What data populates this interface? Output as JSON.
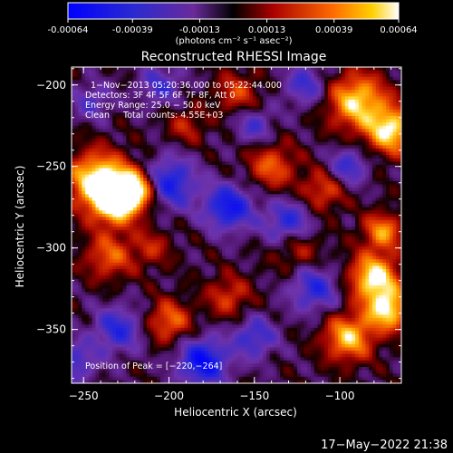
{
  "colorbar": {
    "ticks": [
      "-0.00064",
      "-0.00039",
      "-0.00013",
      "0.00013",
      "0.00039",
      "0.00064"
    ],
    "unit_label": "(photons cm⁻² s⁻¹ asec⁻²)",
    "min": -0.00064,
    "max": 0.00064
  },
  "chart_data": {
    "type": "heatmap",
    "title": "Reconstructed RHESSI Image",
    "xlabel": "Heliocentric X (arcsec)",
    "ylabel": "Heliocentric Y (arcsec)",
    "xlim": [
      -257,
      -64
    ],
    "ylim": [
      -383,
      -189
    ],
    "x_ticks": [
      -250,
      -200,
      -150,
      -100
    ],
    "y_ticks": [
      -200,
      -250,
      -300,
      -350
    ],
    "x_tick_labels": [
      "−250",
      "−200",
      "−150",
      "−100"
    ],
    "y_tick_labels": [
      "−200",
      "−250",
      "−300",
      "−350"
    ],
    "annotations": [
      "1−Nov−2013 05:20:36.000 to 05:22:44.000",
      "Detectors: 3F 4F 5F 6F 7F 8F, Att 0",
      "Energy Range: 25.0 − 50.0 keV",
      "Clean     Total counts: 4.55E+03"
    ],
    "peak_label": "Position of Peak = [−220,−264]",
    "peak": [
      -220,
      -264
    ],
    "hot_spots": [
      {
        "x": -242,
        "y": -258,
        "amp": 1.0,
        "r": 12
      },
      {
        "x": -232,
        "y": -272,
        "amp": 0.95,
        "r": 10
      },
      {
        "x": -220,
        "y": -264,
        "amp": 1.0,
        "r": 9
      },
      {
        "x": -90,
        "y": -210,
        "amp": 0.9,
        "r": 12
      },
      {
        "x": -70,
        "y": -228,
        "amp": 0.95,
        "r": 10
      },
      {
        "x": -80,
        "y": -318,
        "amp": 1.0,
        "r": 10
      },
      {
        "x": -72,
        "y": -338,
        "amp": 0.95,
        "r": 9
      },
      {
        "x": -95,
        "y": -355,
        "amp": 0.85,
        "r": 10
      },
      {
        "x": -75,
        "y": -290,
        "amp": 0.7,
        "r": 8
      },
      {
        "x": -235,
        "y": -305,
        "amp": 0.55,
        "r": 10
      },
      {
        "x": -200,
        "y": -345,
        "amp": 0.6,
        "r": 9
      },
      {
        "x": -165,
        "y": -330,
        "amp": 0.45,
        "r": 9
      },
      {
        "x": -140,
        "y": -250,
        "amp": 0.55,
        "r": 10
      },
      {
        "x": -160,
        "y": -205,
        "amp": 0.45,
        "r": 9
      },
      {
        "x": -110,
        "y": -265,
        "amp": 0.5,
        "r": 9
      },
      {
        "x": -190,
        "y": -225,
        "amp": 0.35,
        "r": 8
      },
      {
        "x": -125,
        "y": -300,
        "amp": 0.4,
        "r": 10
      },
      {
        "x": -210,
        "y": -300,
        "amp": 0.35,
        "r": 8
      }
    ],
    "cold_spots": [
      {
        "x": -180,
        "y": -370,
        "amp": -0.9,
        "r": 10
      },
      {
        "x": -200,
        "y": -260,
        "amp": -0.75,
        "r": 11
      },
      {
        "x": -165,
        "y": -275,
        "amp": -0.8,
        "r": 10
      },
      {
        "x": -130,
        "y": -285,
        "amp": -0.65,
        "r": 10
      },
      {
        "x": -115,
        "y": -325,
        "amp": -0.6,
        "r": 10
      },
      {
        "x": -150,
        "y": -355,
        "amp": -0.55,
        "r": 9
      },
      {
        "x": -230,
        "y": -350,
        "amp": -0.6,
        "r": 10
      },
      {
        "x": -120,
        "y": -200,
        "amp": -0.5,
        "r": 9
      },
      {
        "x": -205,
        "y": -200,
        "amp": -0.45,
        "r": 9
      },
      {
        "x": -245,
        "y": -210,
        "amp": -0.4,
        "r": 8
      },
      {
        "x": -150,
        "y": -225,
        "amp": -0.45,
        "r": 8
      },
      {
        "x": -95,
        "y": -250,
        "amp": -0.55,
        "r": 8
      },
      {
        "x": -255,
        "y": -370,
        "amp": -0.5,
        "r": 9
      }
    ]
  },
  "timestamp": "17−May−2022 21:38",
  "colors": {
    "background": "#000000",
    "text": "#ffffff"
  }
}
